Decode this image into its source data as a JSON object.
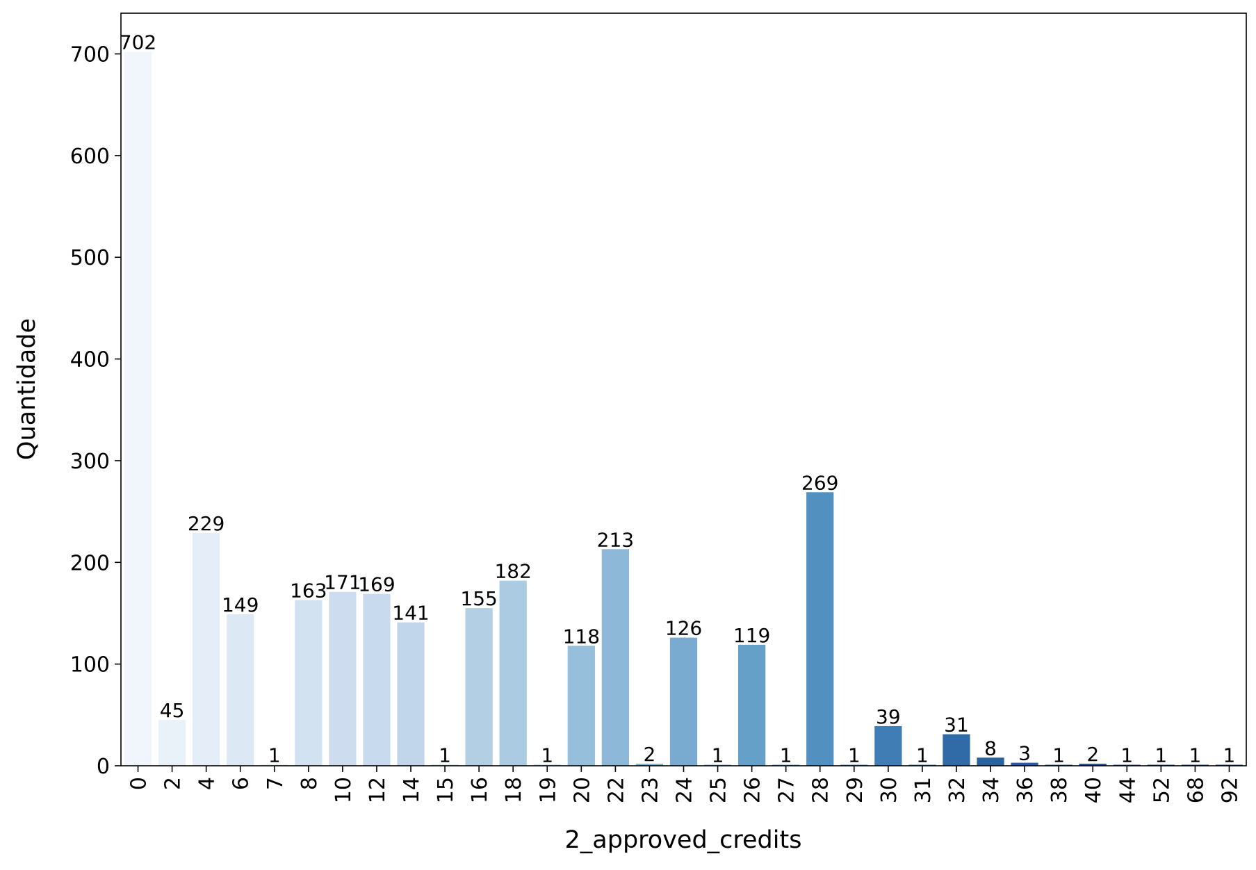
{
  "chart_data": {
    "type": "bar",
    "xlabel": "2_approved_credits",
    "ylabel": "Quantidade",
    "ylim": [
      0,
      740
    ],
    "yticks": [
      0,
      100,
      200,
      300,
      400,
      500,
      600,
      700
    ],
    "grid": false,
    "legend": "none",
    "categories": [
      "0",
      "2",
      "4",
      "6",
      "7",
      "8",
      "10",
      "12",
      "14",
      "15",
      "16",
      "18",
      "19",
      "20",
      "22",
      "23",
      "24",
      "25",
      "26",
      "27",
      "28",
      "29",
      "30",
      "31",
      "32",
      "34",
      "36",
      "38",
      "40",
      "44",
      "52",
      "68",
      "92"
    ],
    "values": [
      702,
      45,
      229,
      149,
      1,
      163,
      171,
      169,
      141,
      1,
      155,
      182,
      1,
      118,
      213,
      2,
      126,
      1,
      119,
      1,
      269,
      1,
      39,
      1,
      31,
      8,
      3,
      1,
      2,
      1,
      1,
      1,
      1
    ],
    "bar_colors": [
      "#f1f6fc",
      "#e9f1f9",
      "#e4edf8",
      "#dde8f5",
      "#d7e4f2",
      "#d3e2f1",
      "#cdddef",
      "#c8dbee",
      "#c1d6eb",
      "#bbd3e9",
      "#b3cfe4",
      "#aacbe2",
      "#a0c6e0",
      "#95bfdb",
      "#8eb8d7",
      "#84b2d3",
      "#79aacf",
      "#6ea5cb",
      "#65a0c9",
      "#5b98c5",
      "#5190bf",
      "#4886b9",
      "#3f7db4",
      "#3873ad",
      "#316ba7",
      "#2a62a0",
      "#285d99",
      "#255793",
      "#22528c",
      "#1f4c86",
      "#1c4680",
      "#1a417a",
      "#183c74"
    ]
  }
}
